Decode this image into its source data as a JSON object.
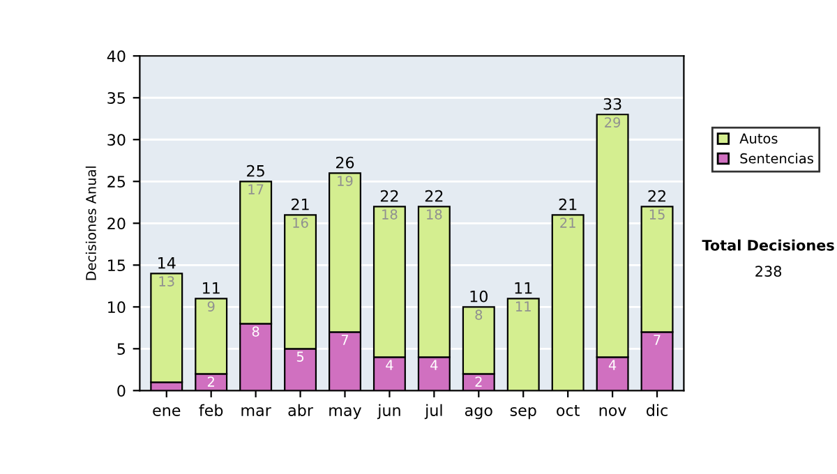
{
  "chart_data": {
    "type": "bar",
    "stacked": true,
    "ylabel": "Decisiones Anual",
    "categories": [
      "ene",
      "feb",
      "mar",
      "abr",
      "may",
      "jun",
      "jul",
      "ago",
      "sep",
      "oct",
      "nov",
      "dic"
    ],
    "series": [
      {
        "name": "Sentencias",
        "color": "#d070c0",
        "values": [
          1,
          2,
          8,
          5,
          7,
          4,
          4,
          2,
          0,
          0,
          4,
          7
        ],
        "value_labels": [
          null,
          "2",
          "8",
          "5",
          "7",
          "4",
          "4",
          "2",
          null,
          null,
          "4",
          "7"
        ]
      },
      {
        "name": "Autos",
        "color": "#d4ee90",
        "values": [
          13,
          9,
          17,
          16,
          19,
          18,
          18,
          8,
          11,
          21,
          29,
          15
        ],
        "value_labels": [
          "13",
          "9",
          "17",
          "16",
          "19",
          "18",
          "18",
          "8",
          "11",
          "21",
          "29",
          "15"
        ]
      }
    ],
    "totals": [
      "14",
      "11",
      "25",
      "21",
      "26",
      "22",
      "22",
      "10",
      "11",
      "21",
      "33",
      "22"
    ],
    "ylim": [
      0,
      40
    ],
    "yticks": [
      0,
      5,
      10,
      15,
      20,
      25,
      30,
      35,
      40
    ],
    "grid": "y",
    "legend": "right",
    "annotations": [
      "Total Decisiones",
      "238"
    ]
  }
}
